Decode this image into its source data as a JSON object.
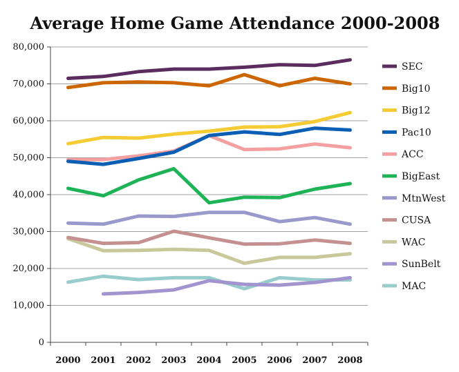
{
  "chart_data": {
    "type": "line",
    "title": "Average Home Game Attendance 2000-2008",
    "xlabel": "",
    "ylabel": "",
    "ylim": [
      0,
      80000
    ],
    "yticks": [
      "0",
      "10,000",
      "20,000",
      "30,000",
      "40,000",
      "50,000",
      "60,000",
      "70,000",
      "80,000"
    ],
    "ytick_values": [
      0,
      10000,
      20000,
      30000,
      40000,
      50000,
      60000,
      70000,
      80000
    ],
    "categories": [
      "2000",
      "2001",
      "2002",
      "2003",
      "2004",
      "2005",
      "2006",
      "2007",
      "2008"
    ],
    "grid": "horizontal",
    "legend_position": "right",
    "series": [
      {
        "name": "SEC",
        "color": "#5b2d5e",
        "values": [
          71500,
          72000,
          73300,
          74000,
          74000,
          74500,
          75200,
          75000,
          76500
        ]
      },
      {
        "name": "Big10",
        "color": "#cc6600",
        "values": [
          69000,
          70300,
          70500,
          70300,
          69500,
          72500,
          69500,
          71500,
          70000
        ]
      },
      {
        "name": "Big12",
        "color": "#f5cc33",
        "values": [
          53800,
          55500,
          55300,
          56400,
          57200,
          58300,
          58400,
          59800,
          62200
        ]
      },
      {
        "name": "Pac10",
        "color": "#0a5fb4",
        "values": [
          49000,
          48200,
          49800,
          51500,
          56000,
          57000,
          56300,
          58000,
          57500
        ]
      },
      {
        "name": "ACC",
        "color": "#f4a0a0",
        "values": [
          49500,
          49500,
          50500,
          51800,
          56000,
          52200,
          52400,
          53700,
          52700
        ]
      },
      {
        "name": "BigEast",
        "color": "#1fb357",
        "values": [
          41700,
          39700,
          44000,
          47000,
          37800,
          39300,
          39200,
          41500,
          43000
        ]
      },
      {
        "name": "MtnWest",
        "color": "#9999cc",
        "values": [
          32300,
          32000,
          34200,
          34100,
          35200,
          35200,
          32700,
          33800,
          32000
        ]
      },
      {
        "name": "CUSA",
        "color": "#c49090",
        "values": [
          28400,
          26800,
          27000,
          30100,
          28300,
          26600,
          26700,
          27700,
          26800
        ]
      },
      {
        "name": "WAC",
        "color": "#c8c89a",
        "values": [
          28100,
          24800,
          24900,
          25200,
          24900,
          21400,
          23000,
          23000,
          24000
        ]
      },
      {
        "name": "SunBelt",
        "color": "#a294cf",
        "values": [
          null,
          13100,
          13500,
          14200,
          16700,
          15700,
          15500,
          16200,
          17500
        ]
      },
      {
        "name": "MAC",
        "color": "#99cccc",
        "values": [
          16300,
          17900,
          17000,
          17500,
          17500,
          14500,
          17500,
          16900,
          16900
        ]
      }
    ]
  }
}
